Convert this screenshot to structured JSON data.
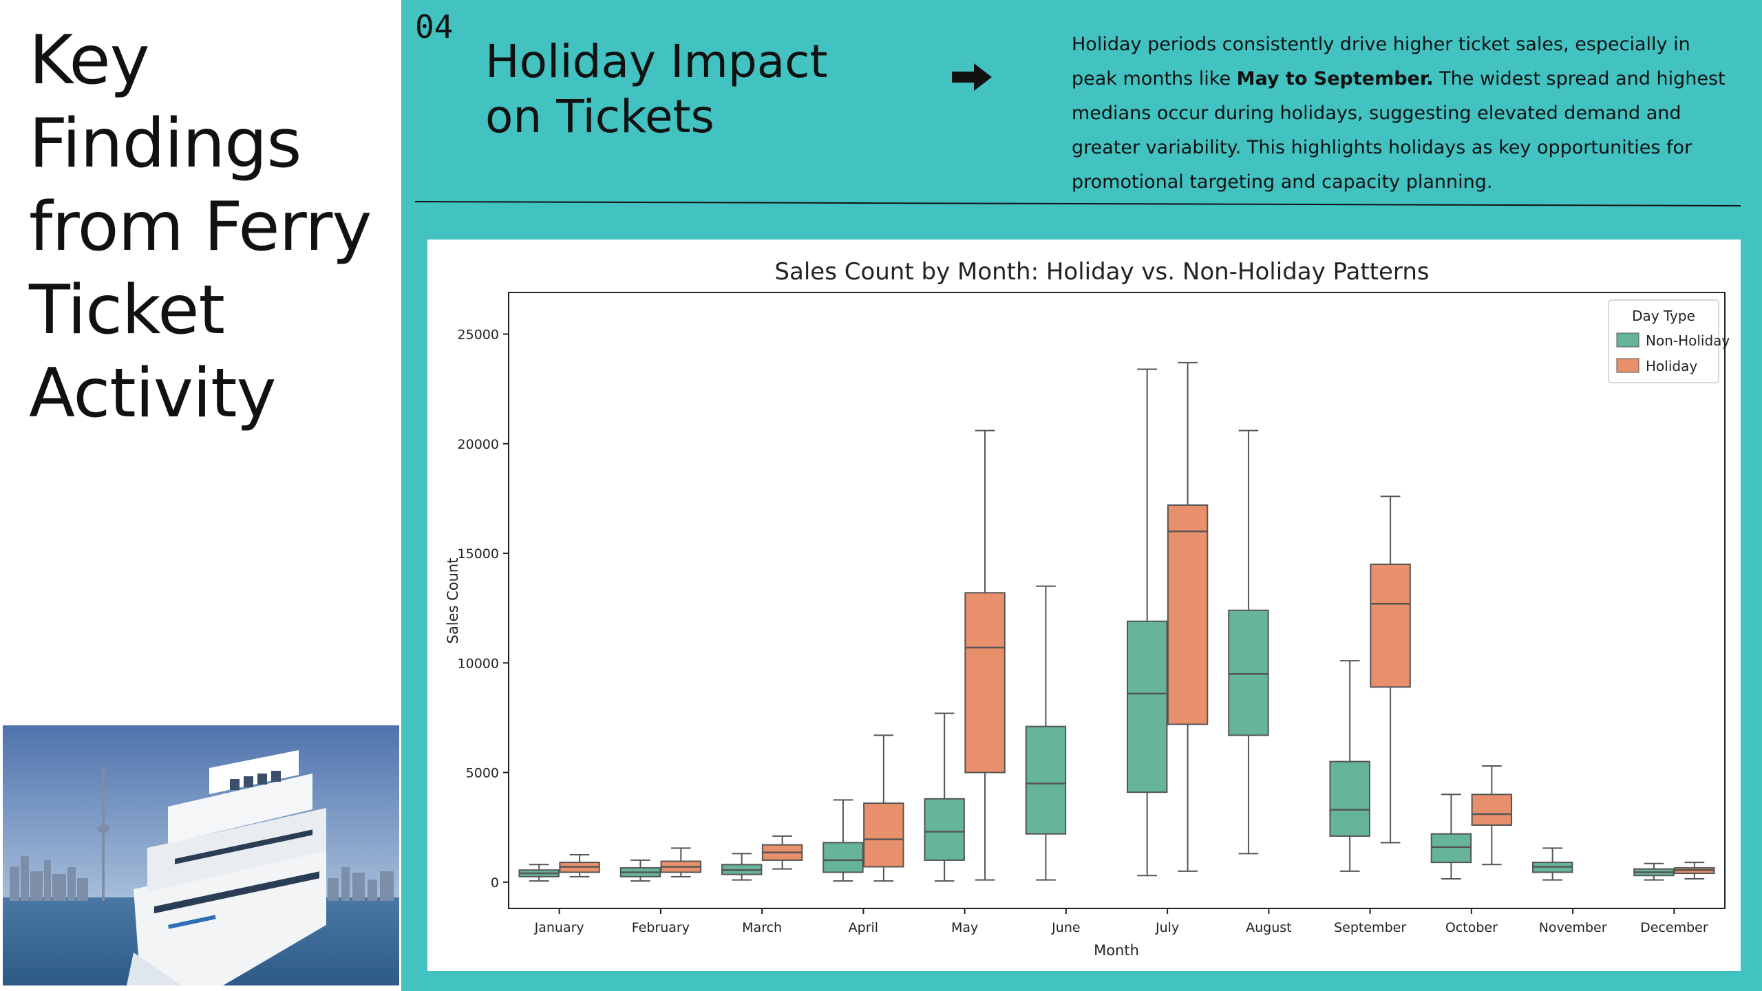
{
  "left_title": [
    "Key",
    "Findings",
    "from Ferry",
    "Ticket",
    "Activity"
  ],
  "panel": {
    "slide_number": "04",
    "title_lines": [
      "Holiday Impact",
      "on Tickets"
    ],
    "arrow_icon": "right-arrow-icon",
    "summary": {
      "before": "Holiday periods consistently drive higher ticket sales, especially in peak months like ",
      "bold": "May to September.",
      "after": " The widest spread and highest medians occur during holidays, suggesting elevated demand and greater variability. This highlights holidays as key opportunities for promotional targeting and capacity planning."
    }
  },
  "photo": {
    "description_icon": "ferry-photo",
    "colors": {
      "sky": "#6f8fbf",
      "water": "#3d6b9a",
      "ship": "#f2f4f6"
    }
  },
  "colors": {
    "panel": "#42c2c1",
    "non_holiday": "#66b59b",
    "holiday": "#e8906b"
  },
  "chart_data": {
    "type": "boxplot",
    "title": "Sales Count by Month: Holiday vs. Non-Holiday Patterns",
    "xlabel": "Month",
    "ylabel": "Sales Count",
    "ylim": [
      -1200,
      26900
    ],
    "yticks": [
      0,
      5000,
      10000,
      15000,
      20000,
      25000
    ],
    "legend": {
      "title": "Day Type",
      "position": "top-right"
    },
    "categories": [
      "January",
      "February",
      "March",
      "April",
      "May",
      "June",
      "July",
      "August",
      "September",
      "October",
      "November",
      "December"
    ],
    "series": [
      {
        "name": "Non-Holiday",
        "color": "#66b59b",
        "boxes": [
          {
            "min": 50,
            "q1": 250,
            "median": 400,
            "q3": 550,
            "max": 800
          },
          {
            "min": 50,
            "q1": 250,
            "median": 450,
            "q3": 650,
            "max": 1000
          },
          {
            "min": 100,
            "q1": 350,
            "median": 550,
            "q3": 800,
            "max": 1300
          },
          {
            "min": 50,
            "q1": 450,
            "median": 1000,
            "q3": 1800,
            "max": 3750
          },
          {
            "min": 50,
            "q1": 1000,
            "median": 2300,
            "q3": 3800,
            "max": 7700
          },
          {
            "min": 100,
            "q1": 2200,
            "median": 4500,
            "q3": 7100,
            "max": 13500
          },
          {
            "min": 300,
            "q1": 4100,
            "median": 8600,
            "q3": 11900,
            "max": 23400
          },
          {
            "min": 1300,
            "q1": 6700,
            "median": 9500,
            "q3": 12400,
            "max": 20600
          },
          {
            "min": 500,
            "q1": 2100,
            "median": 3300,
            "q3": 5500,
            "max": 10100
          },
          {
            "min": 150,
            "q1": 900,
            "median": 1600,
            "q3": 2200,
            "max": 4000
          },
          {
            "min": 100,
            "q1": 450,
            "median": 700,
            "q3": 900,
            "max": 1550
          },
          {
            "min": 100,
            "q1": 300,
            "median": 450,
            "q3": 600,
            "max": 850
          }
        ]
      },
      {
        "name": "Holiday",
        "color": "#e8906b",
        "boxes": [
          {
            "min": 250,
            "q1": 450,
            "median": 700,
            "q3": 900,
            "max": 1250
          },
          {
            "min": 250,
            "q1": 450,
            "median": 700,
            "q3": 950,
            "max": 1550
          },
          {
            "min": 600,
            "q1": 1000,
            "median": 1350,
            "q3": 1700,
            "max": 2100
          },
          {
            "min": 50,
            "q1": 700,
            "median": 1950,
            "q3": 3600,
            "max": 6700
          },
          {
            "min": 100,
            "q1": 5000,
            "median": 10700,
            "q3": 13200,
            "max": 20600
          },
          null,
          {
            "min": 500,
            "q1": 7200,
            "median": 16000,
            "q3": 17200,
            "max": 23700
          },
          null,
          {
            "min": 1800,
            "q1": 8900,
            "median": 12700,
            "q3": 14500,
            "max": 17600
          },
          {
            "min": 800,
            "q1": 2600,
            "median": 3100,
            "q3": 4000,
            "max": 5300
          },
          null,
          {
            "min": 150,
            "q1": 400,
            "median": 550,
            "q3": 650,
            "max": 900
          }
        ]
      }
    ]
  }
}
